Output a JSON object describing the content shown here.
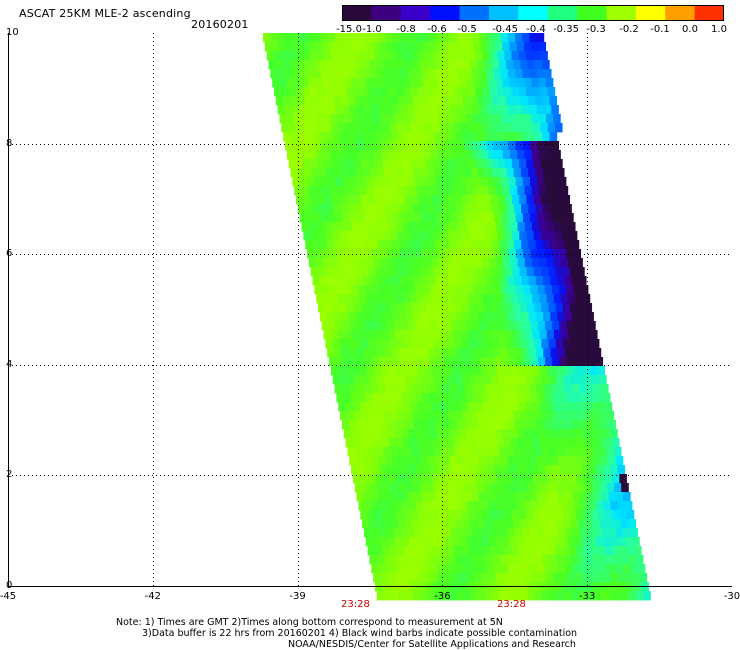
{
  "header": {
    "title": "ASCAT 25KM MLE-2 ascending",
    "date": "20160201"
  },
  "colorbar": {
    "labels": [
      "-15.0",
      "-1.0",
      "-0.8",
      "-0.6",
      "-0.5",
      "-0.45",
      "-0.4",
      "-0.35",
      "-0.3",
      "-0.2",
      "-0.1",
      "0.0",
      "1.0"
    ],
    "colors": [
      "#2a0a3a",
      "#3c0080",
      "#3a00cc",
      "#0010ff",
      "#0070ff",
      "#00c0ff",
      "#00ffff",
      "#20ff80",
      "#40ff20",
      "#a0ff00",
      "#ffff00",
      "#ffa000",
      "#ff3000"
    ]
  },
  "map": {
    "lon_range": [
      -45,
      -30
    ],
    "lat_range": [
      0,
      10
    ],
    "x_ticks": [
      "-45",
      "-42",
      "-39",
      "-36",
      "-33",
      "-30"
    ],
    "y_ticks": [
      "0",
      "2",
      "4",
      "6",
      "8",
      "10"
    ]
  },
  "times": [
    "23:28",
    "23:28"
  ],
  "notes": [
    "Note: 1) Times are GMT 2)Times along bottom correspond to measurement at 5N",
    "3)Data buffer is 22 hrs from 20160201 4) Black wind barbs indicate possible contamination",
    "NOAA/NESDIS/Center for Satellite Applications and Research"
  ]
}
